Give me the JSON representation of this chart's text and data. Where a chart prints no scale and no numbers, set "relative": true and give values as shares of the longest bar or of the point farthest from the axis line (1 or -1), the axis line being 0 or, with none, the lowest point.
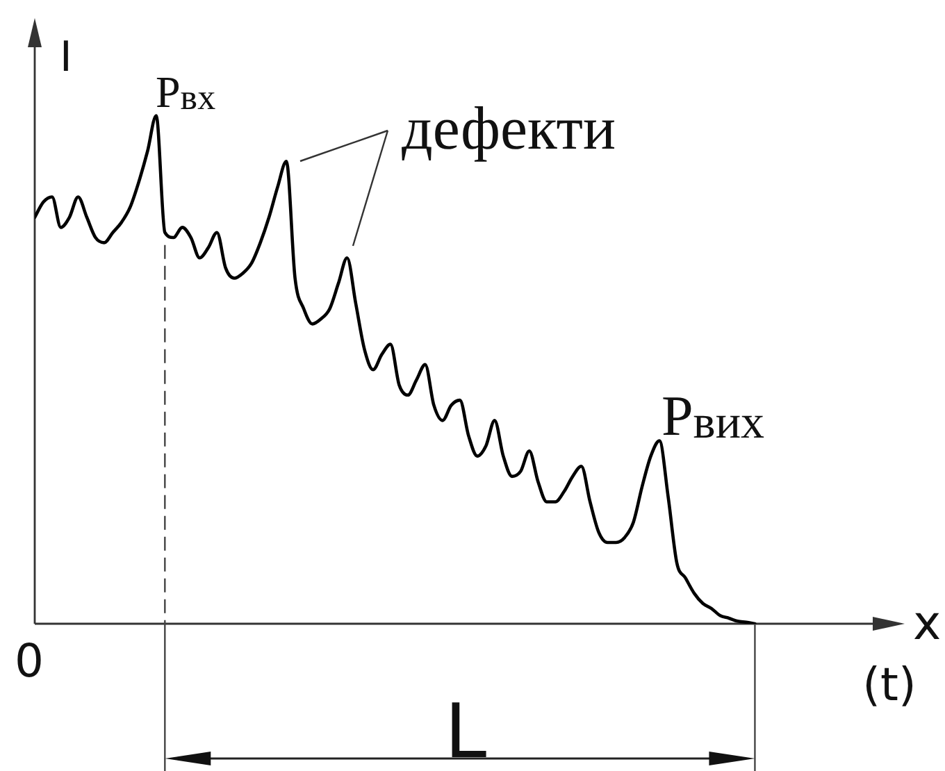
{
  "chart_data": {
    "type": "line",
    "xlabel": "x",
    "ylabel": "I",
    "annotations": [
      "P$_{вх}$",
      "дефекти",
      "P$_{вих}$",
      "0",
      "(t)",
      "L"
    ],
    "categories": [
      null,
      null,
      null,
      null,
      null,
      null,
      null,
      null,
      null,
      null,
      null,
      null,
      null,
      null,
      null,
      null,
      null,
      null,
      null,
      null,
      null,
      null,
      null,
      null,
      null,
      null,
      null,
      null,
      null,
      null,
      null,
      null,
      null,
      null,
      null,
      null,
      null,
      null,
      null,
      null,
      null,
      null,
      null,
      null,
      null,
      null,
      null,
      null,
      null,
      null,
      null,
      null,
      null,
      null,
      null,
      null,
      null,
      null,
      null,
      null,
      null,
      null,
      null,
      null,
      null,
      null,
      null,
      null,
      null,
      null,
      null,
      null,
      null,
      null,
      null,
      null,
      null,
      null,
      null,
      null,
      null,
      null,
      null,
      null
    ],
    "values": [
      0.8,
      0.83,
      0.84,
      0.78,
      0.8,
      0.84,
      0.8,
      0.76,
      0.75,
      0.77,
      0.79,
      0.82,
      0.87,
      0.93,
      1,
      0.77,
      0.76,
      0.78,
      0.76,
      0.72,
      0.74,
      0.77,
      0.7,
      0.68,
      0.69,
      0.71,
      0.75,
      0.8,
      0.86,
      0.91,
      0.68,
      0.62,
      0.59,
      0.6,
      0.62,
      0.67,
      0.72,
      0.63,
      0.54,
      0.5,
      0.53,
      0.55,
      0.47,
      0.45,
      0.48,
      0.51,
      0.43,
      0.4,
      0.43,
      0.44,
      0.37,
      0.33,
      0.35,
      0.4,
      0.33,
      0.29,
      0.3,
      0.34,
      0.28,
      0.24,
      0.24,
      0.26,
      0.29,
      0.31,
      0.24,
      0.18,
      0.16,
      0.16,
      0.17,
      0.2,
      0.27,
      0.33,
      0.36,
      0.25,
      0.12,
      0.09,
      0.06,
      0.04,
      0.03,
      0.016,
      0.011,
      0.005,
      0.003,
      0
    ],
    "color": "#000000",
    "relative": true,
    "marker": "none"
  }
}
